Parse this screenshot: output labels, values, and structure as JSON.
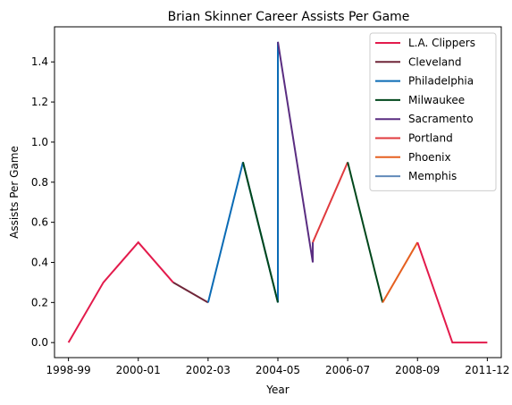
{
  "chart_data": {
    "type": "line",
    "title": "Brian Skinner Career Assists Per Game",
    "xlabel": "Year",
    "ylabel": "Assists Per Game",
    "x_ticks": [
      "1998-99",
      "2000-01",
      "2002-03",
      "2004-05",
      "2006-07",
      "2008-09",
      "2011-12"
    ],
    "y_ticks": [
      "0.0",
      "0.2",
      "0.4",
      "0.6",
      "0.8",
      "1.0",
      "1.2",
      "1.4"
    ],
    "ylim": [
      -0.075,
      1.575
    ],
    "xlim": [
      -0.4,
      12.4
    ],
    "grid": false,
    "legend_position": "top-right",
    "series": [
      {
        "name": "L.A. Clippers",
        "color": "#e31b4c",
        "points": [
          [
            0,
            0.0
          ],
          [
            1,
            0.3
          ],
          [
            2,
            0.5
          ],
          [
            3,
            0.3
          ]
        ]
      },
      {
        "name": "Cleveland",
        "color": "#6f2639",
        "points": [
          [
            3,
            0.3
          ],
          [
            4,
            0.2
          ]
        ]
      },
      {
        "name": "Philadelphia",
        "color": "#0a6bb5",
        "points": [
          [
            4,
            0.2
          ],
          [
            5,
            0.9
          ],
          [
            6,
            0.2
          ],
          [
            6,
            1.5
          ]
        ]
      },
      {
        "name": "Milwaukee",
        "color": "#00471b",
        "points": [
          [
            5,
            0.9
          ],
          [
            6,
            0.2
          ]
        ]
      },
      {
        "name": "Sacramento",
        "color": "#5a2d81",
        "points": [
          [
            6,
            1.5
          ],
          [
            7,
            0.4
          ],
          [
            7,
            0.5
          ]
        ]
      },
      {
        "name": "Portland",
        "color": "#e03a3e",
        "points": [
          [
            7,
            0.5
          ],
          [
            8,
            0.9
          ]
        ]
      },
      {
        "name": "Milwaukee",
        "color": "#00471b",
        "points": [
          [
            8,
            0.9
          ],
          [
            9,
            0.2
          ]
        ]
      },
      {
        "name": "Phoenix",
        "color": "#e56020",
        "points": [
          [
            9,
            0.2
          ],
          [
            10,
            0.5
          ]
        ]
      },
      {
        "name": "Memphis",
        "color": "#6189b9",
        "points": [
          [
            10,
            0.5
          ]
        ]
      },
      {
        "name": "L.A. Clippers",
        "color": "#e31b4c",
        "points": [
          [
            10,
            0.5
          ],
          [
            11,
            0.0
          ],
          [
            12,
            0.0
          ]
        ]
      }
    ],
    "legend": [
      {
        "name": "L.A. Clippers",
        "color": "#e31b4c"
      },
      {
        "name": "Cleveland",
        "color": "#6f2639"
      },
      {
        "name": "Philadelphia",
        "color": "#0a6bb5"
      },
      {
        "name": "Milwaukee",
        "color": "#00471b"
      },
      {
        "name": "Sacramento",
        "color": "#5a2d81"
      },
      {
        "name": "Portland",
        "color": "#e03a3e"
      },
      {
        "name": "Phoenix",
        "color": "#e56020"
      },
      {
        "name": "Memphis",
        "color": "#6189b9"
      }
    ]
  }
}
